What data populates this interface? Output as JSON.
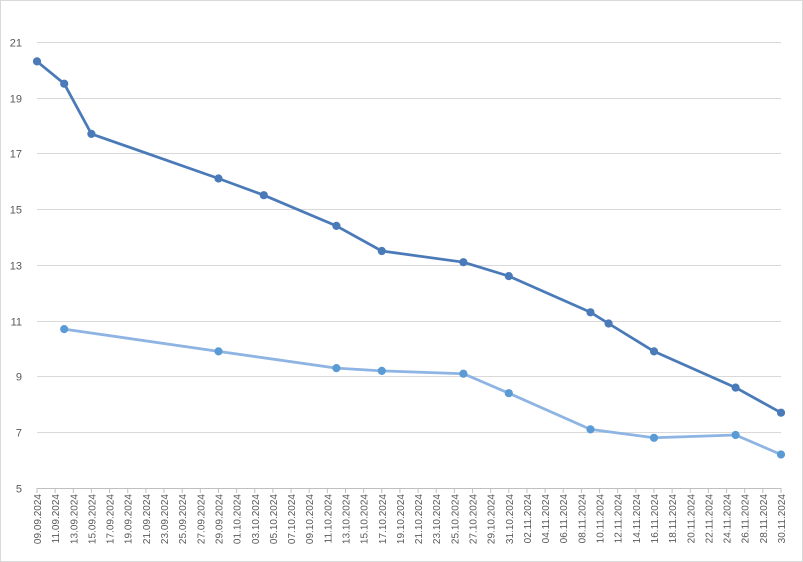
{
  "chart_data": {
    "type": "line",
    "title": "",
    "xlabel": "",
    "ylabel": "",
    "ylim": [
      5,
      22
    ],
    "yticks": [
      5,
      7,
      9,
      11,
      13,
      15,
      17,
      19,
      21
    ],
    "grid": true,
    "legend": "none",
    "x_tick_labels": [
      "09.09.2024",
      "11.09.2024",
      "13.09.2024",
      "15.09.2024",
      "17.09.2024",
      "19.09.2024",
      "21.09.2024",
      "23.09.2024",
      "25.09.2024",
      "27.09.2024",
      "29.09.2024",
      "01.10.2024",
      "03.10.2024",
      "05.10.2024",
      "07.10.2024",
      "09.10.2024",
      "11.10.2024",
      "13.10.2024",
      "15.10.2024",
      "17.10.2024",
      "19.10.2024",
      "21.10.2024",
      "23.10.2024",
      "25.10.2024",
      "27.10.2024",
      "29.10.2024",
      "31.10.2024",
      "02.11.2024",
      "04.11.2024",
      "06.11.2024",
      "08.11.2024",
      "10.11.2024",
      "12.11.2024",
      "14.11.2024",
      "16.11.2024",
      "18.11.2024",
      "20.11.2024",
      "22.11.2024",
      "24.11.2024",
      "26.11.2024",
      "28.11.2024",
      "30.11.2024"
    ],
    "series": [
      {
        "color": "#4a7ab8",
        "points": [
          {
            "x": "09.09.2024",
            "y": 20.3
          },
          {
            "x": "12.09.2024",
            "y": 19.5
          },
          {
            "x": "15.09.2024",
            "y": 17.7
          },
          {
            "x": "29.09.2024",
            "y": 16.1
          },
          {
            "x": "04.10.2024",
            "y": 15.5
          },
          {
            "x": "12.10.2024",
            "y": 14.4
          },
          {
            "x": "17.10.2024",
            "y": 13.5
          },
          {
            "x": "26.10.2024",
            "y": 13.1
          },
          {
            "x": "31.10.2024",
            "y": 12.6
          },
          {
            "x": "09.11.2024",
            "y": 11.3
          },
          {
            "x": "11.11.2024",
            "y": 10.9
          },
          {
            "x": "16.11.2024",
            "y": 9.9
          },
          {
            "x": "25.11.2024",
            "y": 8.6
          },
          {
            "x": "30.11.2024",
            "y": 7.7
          }
        ]
      },
      {
        "color": "#8eb4e3",
        "marker_color": "#5b9bd5",
        "points": [
          {
            "x": "12.09.2024",
            "y": 10.7
          },
          {
            "x": "29.09.2024",
            "y": 9.9
          },
          {
            "x": "12.10.2024",
            "y": 9.3
          },
          {
            "x": "17.10.2024",
            "y": 9.2
          },
          {
            "x": "26.10.2024",
            "y": 9.1
          },
          {
            "x": "31.10.2024",
            "y": 8.4
          },
          {
            "x": "09.11.2024",
            "y": 7.1
          },
          {
            "x": "16.11.2024",
            "y": 6.8
          },
          {
            "x": "25.11.2024",
            "y": 6.9
          },
          {
            "x": "30.11.2024",
            "y": 6.2
          }
        ]
      }
    ]
  }
}
